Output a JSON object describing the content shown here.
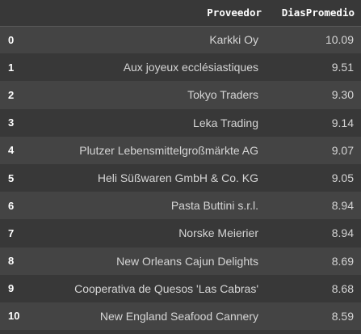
{
  "table": {
    "columns": [
      "Proveedor",
      "DiasPromedio"
    ],
    "rows": [
      {
        "index": "0",
        "proveedor": "Karkki Oy",
        "dias": "10.09"
      },
      {
        "index": "1",
        "proveedor": "Aux joyeux ecclésiastiques",
        "dias": "9.51"
      },
      {
        "index": "2",
        "proveedor": "Tokyo Traders",
        "dias": "9.30"
      },
      {
        "index": "3",
        "proveedor": "Leka Trading",
        "dias": "9.14"
      },
      {
        "index": "4",
        "proveedor": "Plutzer Lebensmittelgroßmärkte AG",
        "dias": "9.07"
      },
      {
        "index": "5",
        "proveedor": "Heli Süßwaren GmbH & Co. KG",
        "dias": "9.05"
      },
      {
        "index": "6",
        "proveedor": "Pasta Buttini s.r.l.",
        "dias": "8.94"
      },
      {
        "index": "7",
        "proveedor": "Norske Meierier",
        "dias": "8.94"
      },
      {
        "index": "8",
        "proveedor": "New Orleans Cajun Delights",
        "dias": "8.69"
      },
      {
        "index": "9",
        "proveedor": "Cooperativa de Quesos 'Las Cabras'",
        "dias": "8.68"
      },
      {
        "index": "10",
        "proveedor": "New England Seafood Cannery",
        "dias": "8.59"
      }
    ]
  },
  "colors": {
    "background": "#383838",
    "row_stripe": "#444444",
    "header_text": "#ffffff",
    "cell_text": "#d5d5d5"
  }
}
